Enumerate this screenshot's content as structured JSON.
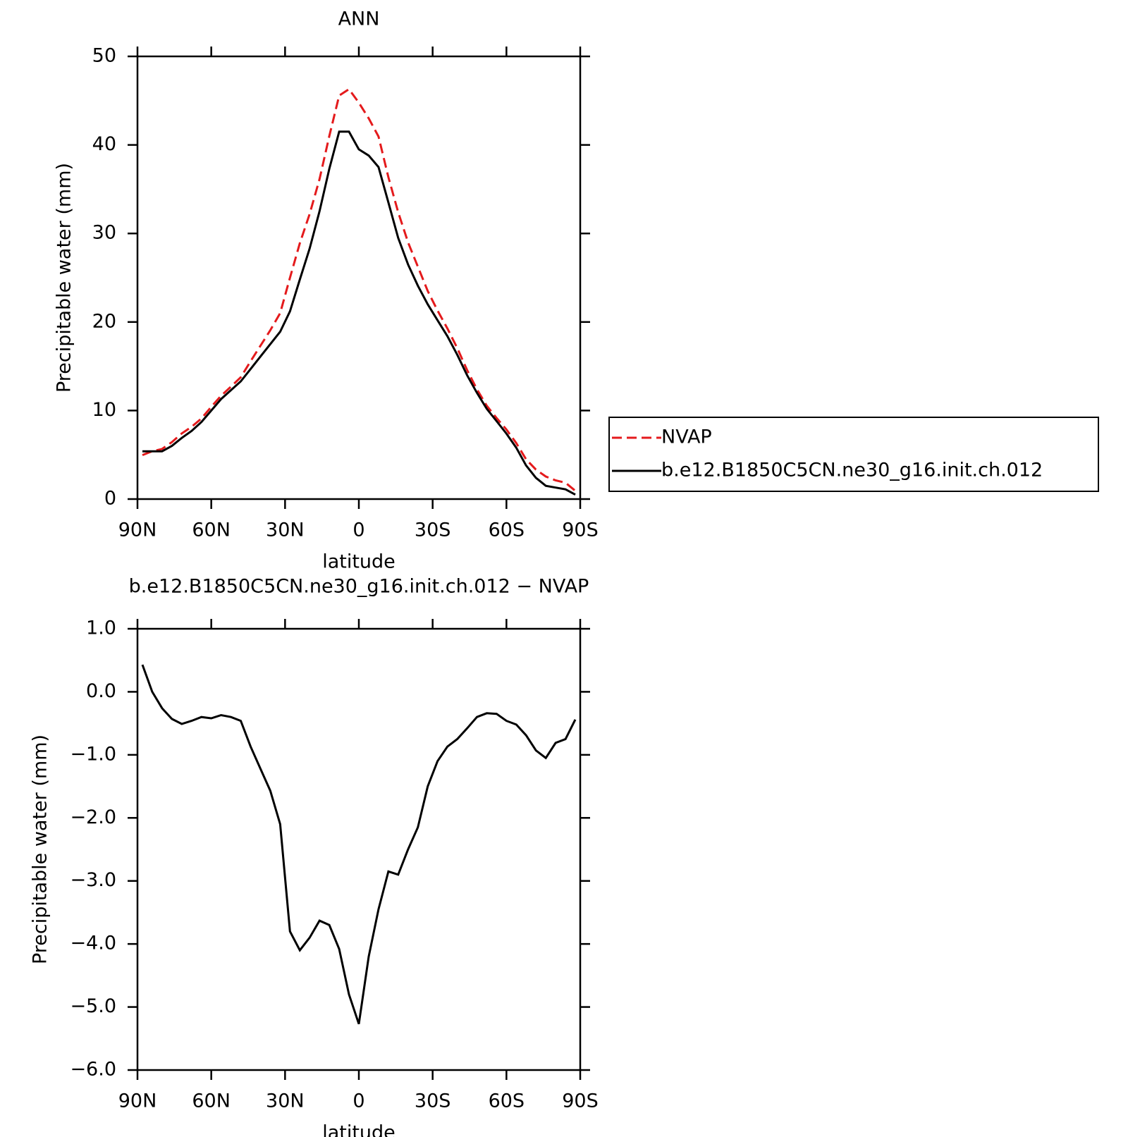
{
  "chart_data": [
    {
      "type": "line",
      "title": "ANN",
      "xlabel": "latitude",
      "ylabel": "Precipitable water (mm)",
      "x": [
        88,
        84,
        80,
        76,
        72,
        68,
        64,
        60,
        56,
        52,
        48,
        44,
        40,
        36,
        32,
        28,
        24,
        20,
        16,
        12,
        8,
        4,
        0,
        -4,
        -8,
        -12,
        -16,
        -20,
        -24,
        -28,
        -32,
        -36,
        -40,
        -44,
        -48,
        -52,
        -56,
        -60,
        -64,
        -68,
        -72,
        -76,
        -80,
        -84,
        -88
      ],
      "series": [
        {
          "name": "NVAP",
          "color": "#e41a1c",
          "line_style": "dashed",
          "values": [
            4.97,
            5.4,
            5.66,
            6.43,
            7.41,
            8.16,
            9.1,
            10.42,
            11.67,
            12.7,
            13.76,
            15.57,
            17.32,
            19.07,
            21.0,
            25.0,
            28.9,
            32.2,
            36.13,
            41.0,
            45.58,
            46.3,
            44.77,
            43.0,
            40.95,
            36.35,
            32.4,
            29.0,
            26.25,
            23.5,
            21.3,
            19.27,
            17.05,
            14.58,
            12.4,
            10.54,
            9.15,
            7.86,
            6.32,
            4.49,
            3.33,
            2.55,
            2.11,
            1.85,
            0.94
          ]
        },
        {
          "name": "b.e12.B1850C5CN.ne30_g16.init.ch.012",
          "color": "#000000",
          "line_style": "solid",
          "values": [
            5.4,
            5.4,
            5.4,
            6.0,
            6.9,
            7.7,
            8.7,
            10.0,
            11.3,
            12.3,
            13.3,
            14.7,
            16.1,
            17.5,
            18.9,
            21.2,
            24.8,
            28.3,
            32.5,
            37.3,
            41.5,
            41.5,
            39.5,
            38.8,
            37.5,
            33.5,
            29.5,
            26.5,
            24.1,
            22.0,
            20.2,
            18.4,
            16.3,
            14.0,
            12.0,
            10.2,
            8.8,
            7.4,
            5.8,
            3.8,
            2.4,
            1.5,
            1.3,
            1.1,
            0.5
          ]
        }
      ],
      "xlim": [
        90,
        -90
      ],
      "xticks": [
        {
          "value": 90,
          "label": "90N"
        },
        {
          "value": 60,
          "label": "60N"
        },
        {
          "value": 30,
          "label": "30N"
        },
        0,
        {
          "value": -30,
          "label": "30S"
        },
        {
          "value": -60,
          "label": "60S"
        },
        {
          "value": -90,
          "label": "90S"
        }
      ],
      "ylim": [
        0,
        50
      ],
      "yticks": [
        0,
        10,
        20,
        30,
        40,
        50
      ],
      "legend": "outside right"
    },
    {
      "type": "line",
      "title": "b.e12.B1850C5CN.ne30_g16.init.ch.012 − NVAP",
      "xlabel": "latitude",
      "ylabel": "Precipitable water (mm)",
      "x": [
        88,
        84,
        80,
        76,
        72,
        68,
        64,
        60,
        56,
        52,
        48,
        44,
        40,
        36,
        32,
        28,
        24,
        20,
        16,
        12,
        8,
        4,
        0,
        -4,
        -8,
        -12,
        -16,
        -20,
        -24,
        -28,
        -32,
        -36,
        -40,
        -44,
        -48,
        -52,
        -56,
        -60,
        -64,
        -68,
        -72,
        -76,
        -80,
        -84,
        -88
      ],
      "series": [
        {
          "color": "#000000",
          "line_style": "solid",
          "values": [
            0.43,
            0.0,
            -0.26,
            -0.43,
            -0.51,
            -0.46,
            -0.4,
            -0.42,
            -0.37,
            -0.4,
            -0.46,
            -0.87,
            -1.22,
            -1.57,
            -2.1,
            -3.8,
            -4.1,
            -3.9,
            -3.63,
            -3.7,
            -4.08,
            -4.8,
            -5.27,
            -4.2,
            -3.45,
            -2.85,
            -2.9,
            -2.5,
            -2.15,
            -1.5,
            -1.1,
            -0.87,
            -0.75,
            -0.58,
            -0.4,
            -0.34,
            -0.35,
            -0.46,
            -0.52,
            -0.69,
            -0.93,
            -1.05,
            -0.81,
            -0.75,
            -0.44
          ]
        }
      ],
      "xlim": [
        90,
        -90
      ],
      "xticks": [
        {
          "value": 90,
          "label": "90N"
        },
        {
          "value": 60,
          "label": "60N"
        },
        {
          "value": 30,
          "label": "30N"
        },
        0,
        {
          "value": -30,
          "label": "30S"
        },
        {
          "value": -60,
          "label": "60S"
        },
        {
          "value": -90,
          "label": "90S"
        }
      ],
      "ylim": [
        -6,
        1
      ],
      "yticks": [
        {
          "value": -6,
          "label": "−6.0"
        },
        {
          "value": -5,
          "label": "−5.0"
        },
        {
          "value": -4,
          "label": "−4.0"
        },
        {
          "value": -3,
          "label": "−3.0"
        },
        {
          "value": -2,
          "label": "−2.0"
        },
        {
          "value": -1,
          "label": "−1.0"
        },
        {
          "value": 0,
          "label": "0.0"
        },
        {
          "value": 1,
          "label": "1.0"
        }
      ]
    }
  ]
}
